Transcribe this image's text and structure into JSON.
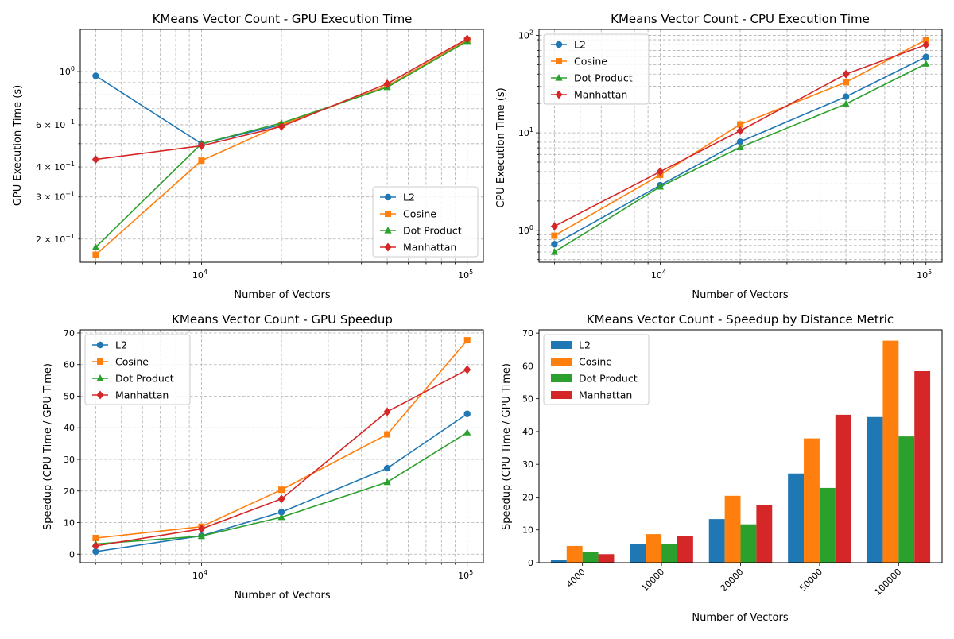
{
  "chart_data": [
    {
      "type": "line",
      "title": "KMeans Vector Count - GPU Execution Time",
      "xlabel": "Number of Vectors",
      "ylabel": "GPU Execution Time (s)",
      "xscale": "log",
      "yscale": "log",
      "xlim": [
        3500,
        115000
      ],
      "ylim": [
        0.16,
        1.5
      ],
      "x": [
        4000,
        10000,
        20000,
        50000,
        100000
      ],
      "x_ticks": [
        {
          "v": 10000,
          "base": "10",
          "exp": "4"
        },
        {
          "v": 100000,
          "base": "10",
          "exp": "5"
        }
      ],
      "y_ticks": [
        {
          "v": 1.0,
          "plain": "10",
          "exp": "0"
        },
        {
          "v": 0.6,
          "mant": "6",
          "exp": "−1"
        },
        {
          "v": 0.4,
          "mant": "4",
          "exp": "−1"
        },
        {
          "v": 0.3,
          "mant": "3",
          "exp": "−1"
        },
        {
          "v": 0.2,
          "mant": "2",
          "exp": "−1"
        }
      ],
      "grid": "major+minor",
      "legend_loc": "lower right",
      "series": [
        {
          "name": "L2",
          "color": "#1f77b4",
          "marker": "circle",
          "values": [
            0.96,
            0.5,
            0.6,
            0.87,
            1.35
          ]
        },
        {
          "name": "Cosine",
          "color": "#ff7f0e",
          "marker": "square",
          "values": [
            0.172,
            0.425,
            0.6,
            0.87,
            1.35
          ]
        },
        {
          "name": "Dot Product",
          "color": "#2ca02c",
          "marker": "triangle",
          "values": [
            0.185,
            0.5,
            0.61,
            0.86,
            1.34
          ]
        },
        {
          "name": "Manhattan",
          "color": "#d62728",
          "marker": "diamond",
          "values": [
            0.43,
            0.49,
            0.59,
            0.89,
            1.37
          ]
        }
      ]
    },
    {
      "type": "line",
      "title": "KMeans Vector Count - CPU Execution Time",
      "xlabel": "Number of Vectors",
      "ylabel": "CPU Execution Time (s)",
      "xscale": "log",
      "yscale": "log",
      "xlim": [
        3500,
        115000
      ],
      "ylim": [
        0.47,
        115
      ],
      "x": [
        4000,
        10000,
        20000,
        50000,
        100000
      ],
      "x_ticks": [
        {
          "v": 10000,
          "base": "10",
          "exp": "4"
        },
        {
          "v": 100000,
          "base": "10",
          "exp": "5"
        }
      ],
      "y_ticks": [
        {
          "v": 100,
          "plain": "10",
          "exp": "2"
        },
        {
          "v": 10,
          "plain": "10",
          "exp": "1"
        },
        {
          "v": 1,
          "plain": "10",
          "exp": "0"
        }
      ],
      "grid": "major+minor",
      "legend_loc": "upper left",
      "series": [
        {
          "name": "L2",
          "color": "#1f77b4",
          "marker": "circle",
          "values": [
            0.72,
            2.9,
            8.1,
            23.5,
            60
          ]
        },
        {
          "name": "Cosine",
          "color": "#ff7f0e",
          "marker": "square",
          "values": [
            0.88,
            3.7,
            12.2,
            33,
            90
          ]
        },
        {
          "name": "Dot Product",
          "color": "#2ca02c",
          "marker": "triangle",
          "values": [
            0.6,
            2.8,
            7.1,
            19.8,
            51
          ]
        },
        {
          "name": "Manhattan",
          "color": "#d62728",
          "marker": "diamond",
          "values": [
            1.1,
            4.0,
            10.5,
            40,
            80
          ]
        }
      ]
    },
    {
      "type": "line",
      "title": "KMeans Vector Count - GPU Speedup",
      "xlabel": "Number of Vectors",
      "ylabel": "Speedup (CPU Time / GPU Time)",
      "xscale": "log",
      "yscale": "linear",
      "xlim": [
        3500,
        115000
      ],
      "ylim": [
        -2.7,
        71
      ],
      "x": [
        4000,
        10000,
        20000,
        50000,
        100000
      ],
      "x_ticks": [
        {
          "v": 10000,
          "base": "10",
          "exp": "4"
        },
        {
          "v": 100000,
          "base": "10",
          "exp": "5"
        }
      ],
      "y_ticks": [
        {
          "v": 0,
          "label": "0"
        },
        {
          "v": 10,
          "label": "10"
        },
        {
          "v": 20,
          "label": "20"
        },
        {
          "v": 30,
          "label": "30"
        },
        {
          "v": 40,
          "label": "40"
        },
        {
          "v": 50,
          "label": "50"
        },
        {
          "v": 60,
          "label": "60"
        },
        {
          "v": 70,
          "label": "70"
        }
      ],
      "grid": "major+minor",
      "legend_loc": "upper left",
      "series": [
        {
          "name": "L2",
          "color": "#1f77b4",
          "marker": "circle",
          "values": [
            0.8,
            5.8,
            13.3,
            27.2,
            44.4
          ]
        },
        {
          "name": "Cosine",
          "color": "#ff7f0e",
          "marker": "square",
          "values": [
            5.1,
            8.7,
            20.4,
            37.9,
            67.7
          ]
        },
        {
          "name": "Dot Product",
          "color": "#2ca02c",
          "marker": "triangle",
          "values": [
            3.2,
            5.7,
            11.7,
            22.8,
            38.5
          ]
        },
        {
          "name": "Manhattan",
          "color": "#d62728",
          "marker": "diamond",
          "values": [
            2.6,
            8.0,
            17.5,
            45.1,
            58.4
          ]
        }
      ]
    },
    {
      "type": "bar",
      "title": "KMeans Vector Count - Speedup by Distance Metric",
      "xlabel": "Number of Vectors",
      "ylabel": "Speedup (CPU Time / GPU Time)",
      "ylim": [
        0,
        71
      ],
      "categories": [
        "4000",
        "10000",
        "20000",
        "50000",
        "100000"
      ],
      "y_ticks": [
        {
          "v": 0,
          "label": "0"
        },
        {
          "v": 10,
          "label": "10"
        },
        {
          "v": 20,
          "label": "20"
        },
        {
          "v": 30,
          "label": "30"
        },
        {
          "v": 40,
          "label": "40"
        },
        {
          "v": 50,
          "label": "50"
        },
        {
          "v": 60,
          "label": "60"
        },
        {
          "v": 70,
          "label": "70"
        }
      ],
      "x_tick_rotation": 45,
      "legend_loc": "upper left",
      "series": [
        {
          "name": "L2",
          "color": "#1f77b4",
          "values": [
            0.8,
            5.8,
            13.3,
            27.2,
            44.4
          ]
        },
        {
          "name": "Cosine",
          "color": "#ff7f0e",
          "values": [
            5.1,
            8.7,
            20.4,
            37.9,
            67.7
          ]
        },
        {
          "name": "Dot Product",
          "color": "#2ca02c",
          "values": [
            3.2,
            5.7,
            11.7,
            22.8,
            38.5
          ]
        },
        {
          "name": "Manhattan",
          "color": "#d62728",
          "values": [
            2.6,
            8.0,
            17.5,
            45.1,
            58.4
          ]
        }
      ]
    }
  ]
}
